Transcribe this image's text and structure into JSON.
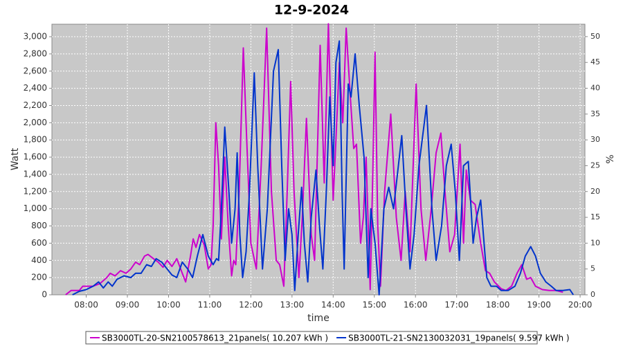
{
  "chart_data": {
    "type": "line",
    "title": "12-9-2024",
    "x_label": "time",
    "y_label": "Watt",
    "y2_label": "%",
    "xlim": [
      "07:10",
      "20:07"
    ],
    "xticks": [
      "08:00",
      "09:00",
      "10:00",
      "11:00",
      "12:00",
      "13:00",
      "14:00",
      "15:00",
      "16:00",
      "17:00",
      "18:00",
      "19:00",
      "20:00"
    ],
    "ylim": [
      0,
      3145
    ],
    "yticks": [
      0,
      200,
      400,
      600,
      800,
      {
        "value": 1000,
        "label": "1,000"
      },
      {
        "value": 1200,
        "label": "1,200"
      },
      {
        "value": 1400,
        "label": "1,400"
      },
      {
        "value": 1600,
        "label": "1,600"
      },
      {
        "value": 1800,
        "label": "1,800"
      },
      {
        "value": 2000,
        "label": "2,000"
      },
      {
        "value": 2200,
        "label": "2,200"
      },
      {
        "value": 2400,
        "label": "2,400"
      },
      {
        "value": 2600,
        "label": "2,600"
      },
      {
        "value": 2800,
        "label": "2,800"
      },
      {
        "value": 3000,
        "label": "3,000"
      }
    ],
    "y2lim": [
      0,
      52.4
    ],
    "y2ticks": [
      0,
      5,
      10,
      15,
      20,
      25,
      30,
      35,
      40,
      45,
      50
    ],
    "grid": true,
    "series": [
      {
        "name": "SB3000TL-20-SN2100578613_21panels( 10.207 kWh )",
        "color": "#cc00cc",
        "x": [
          "07:30",
          "07:38",
          "07:50",
          "07:55",
          "08:10",
          "08:20",
          "08:30",
          "08:35",
          "08:42",
          "08:50",
          "08:58",
          "09:05",
          "09:12",
          "09:18",
          "09:25",
          "09:30",
          "09:38",
          "09:45",
          "09:52",
          "09:58",
          "10:05",
          "10:12",
          "10:20",
          "10:25",
          "10:32",
          "10:36",
          "10:40",
          "10:45",
          "10:52",
          "10:58",
          "11:02",
          "11:05",
          "11:09",
          "11:13",
          "11:17",
          "11:22",
          "11:27",
          "11:32",
          "11:35",
          "11:38",
          "11:43",
          "11:49",
          "11:54",
          "12:00",
          "12:08",
          "12:15",
          "12:23",
          "12:30",
          "12:37",
          "12:42",
          "12:48",
          "12:53",
          "12:58",
          "13:03",
          "13:10",
          "13:15",
          "13:21",
          "13:28",
          "13:33",
          "13:41",
          "13:47",
          "13:53",
          "14:00",
          "14:04",
          "14:09",
          "14:14",
          "14:19",
          "14:25",
          "14:30",
          "14:34",
          "14:40",
          "14:44",
          "14:48",
          "14:54",
          "14:58",
          "15:01",
          "15:05",
          "15:09",
          "15:15",
          "15:24",
          "15:32",
          "15:39",
          "15:45",
          "15:52",
          "16:01",
          "16:08",
          "16:15",
          "16:23",
          "16:30",
          "16:37",
          "16:43",
          "16:50",
          "16:57",
          "17:05",
          "17:10",
          "17:14",
          "17:20",
          "17:27",
          "17:35",
          "17:42",
          "17:48",
          "17:55",
          "18:05",
          "18:12",
          "18:20",
          "18:28",
          "18:35",
          "18:42",
          "18:48",
          "18:55",
          "19:05",
          "19:15",
          "19:25",
          "19:35"
        ],
        "values": [
          0,
          50,
          50,
          100,
          100,
          130,
          200,
          250,
          220,
          280,
          250,
          300,
          380,
          350,
          450,
          470,
          420,
          380,
          320,
          400,
          330,
          420,
          250,
          150,
          450,
          650,
          550,
          700,
          580,
          300,
          350,
          800,
          2000,
          1500,
          650,
          1600,
          800,
          220,
          400,
          350,
          1200,
          2870,
          1800,
          600,
          300,
          1500,
          3100,
          1200,
          400,
          350,
          100,
          1200,
          2480,
          1200,
          200,
          900,
          2050,
          700,
          400,
          2900,
          1300,
          3150,
          1100,
          1800,
          2700,
          2000,
          3100,
          2300,
          1700,
          1750,
          600,
          900,
          1600,
          60,
          1500,
          2820,
          800,
          100,
          1200,
          2100,
          900,
          400,
          1200,
          500,
          2450,
          1000,
          400,
          1000,
          1650,
          1880,
          1200,
          500,
          700,
          1750,
          600,
          1450,
          1100,
          1050,
          600,
          280,
          250,
          150,
          70,
          50,
          100,
          250,
          350,
          180,
          200,
          100,
          60,
          50,
          50,
          30
        ]
      },
      {
        "name": "SB3000TL-21-SN2130032031_19panels( 9.597 kWh )",
        "color": "#0033cc",
        "x": [
          "07:40",
          "07:50",
          "08:00",
          "08:10",
          "08:18",
          "08:25",
          "08:32",
          "08:38",
          "08:45",
          "08:55",
          "09:05",
          "09:12",
          "09:20",
          "09:28",
          "09:35",
          "09:42",
          "09:50",
          "09:58",
          "10:05",
          "10:12",
          "10:20",
          "10:28",
          "10:35",
          "10:42",
          "10:50",
          "10:58",
          "11:05",
          "11:10",
          "11:13",
          "11:17",
          "11:22",
          "11:28",
          "11:32",
          "11:37",
          "11:40",
          "11:44",
          "11:48",
          "11:53",
          "11:58",
          "12:05",
          "12:10",
          "12:17",
          "12:24",
          "12:33",
          "12:40",
          "12:45",
          "12:50",
          "12:55",
          "13:00",
          "13:04",
          "13:09",
          "13:14",
          "13:18",
          "13:23",
          "13:28",
          "13:35",
          "13:40",
          "13:45",
          "13:50",
          "13:55",
          "14:00",
          "14:04",
          "14:09",
          "14:13",
          "14:16",
          "14:22",
          "14:26",
          "14:32",
          "14:38",
          "14:45",
          "14:51",
          "14:55",
          "15:01",
          "15:07",
          "15:14",
          "15:21",
          "15:28",
          "15:40",
          "15:46",
          "15:52",
          "15:58",
          "16:05",
          "16:16",
          "16:24",
          "16:30",
          "16:38",
          "16:45",
          "16:52",
          "16:58",
          "17:04",
          "17:10",
          "17:17",
          "17:24",
          "17:29",
          "17:35",
          "17:39",
          "17:44",
          "17:50",
          "17:58",
          "18:05",
          "18:15",
          "18:25",
          "18:33",
          "18:40",
          "18:48",
          "18:55",
          "19:02",
          "19:10",
          "19:18",
          "19:25",
          "19:35",
          "19:45",
          "19:50"
        ],
        "values": [
          0,
          40,
          60,
          100,
          150,
          80,
          150,
          100,
          180,
          220,
          200,
          250,
          250,
          350,
          330,
          420,
          380,
          300,
          230,
          200,
          380,
          300,
          200,
          450,
          700,
          450,
          350,
          420,
          400,
          1000,
          1950,
          1200,
          600,
          1000,
          1650,
          700,
          200,
          500,
          1200,
          2580,
          1500,
          300,
          1000,
          2600,
          2850,
          1500,
          400,
          1000,
          700,
          50,
          700,
          1250,
          600,
          150,
          900,
          1450,
          800,
          300,
          1200,
          2300,
          1500,
          2700,
          2950,
          1200,
          300,
          2450,
          2300,
          2800,
          2200,
          1600,
          200,
          1000,
          600,
          0,
          1000,
          1250,
          1000,
          1850,
          1000,
          300,
          700,
          1500,
          2200,
          1000,
          400,
          800,
          1500,
          1750,
          1200,
          400,
          1500,
          1550,
          600,
          900,
          1100,
          700,
          200,
          100,
          100,
          50,
          50,
          100,
          250,
          450,
          560,
          450,
          250,
          150,
          100,
          50,
          50,
          60,
          0
        ]
      }
    ]
  }
}
